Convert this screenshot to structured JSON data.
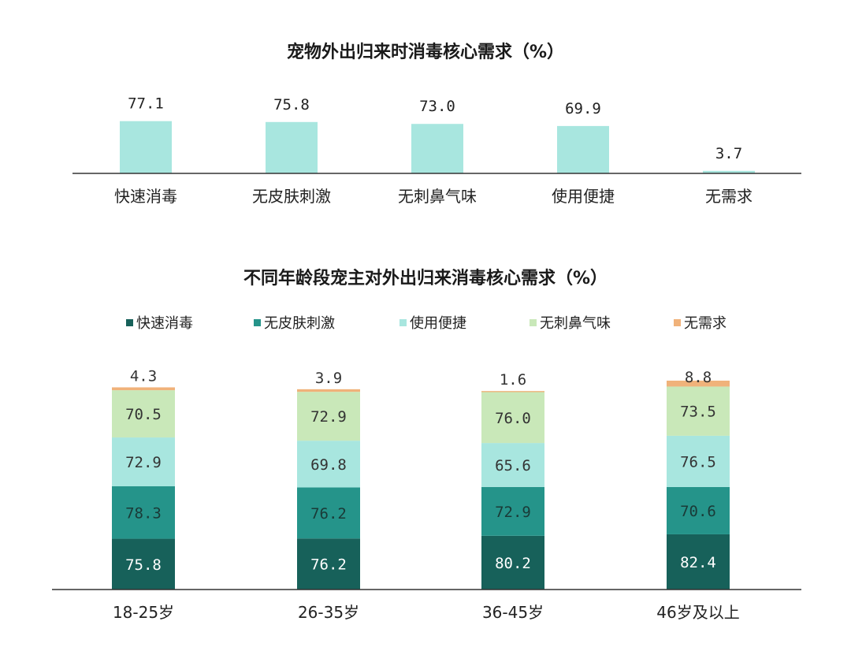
{
  "chart_data": [
    {
      "type": "bar",
      "title": "宠物外出归来时消毒核心需求（%）",
      "categories": [
        "快速消毒",
        "无皮肤刺激",
        "无刺鼻气味",
        "使用便捷",
        "无需求"
      ],
      "values": [
        77.1,
        75.8,
        73.0,
        69.9,
        3.7
      ],
      "value_labels": [
        "77.1",
        "75.8",
        "73.0",
        "69.9",
        "3.7"
      ],
      "ylim": [
        0,
        100
      ],
      "color": "#a8e6df",
      "grid": false
    },
    {
      "type": "bar",
      "stacked": true,
      "title": "不同年龄段宠主对外出归来消毒核心需求（%）",
      "categories": [
        "18-25岁",
        "26-35岁",
        "36-45岁",
        "46岁及以上"
      ],
      "series": [
        {
          "name": "快速消毒",
          "color": "#17615a",
          "values": [
            75.8,
            76.2,
            80.2,
            82.4
          ],
          "labels": [
            "75.8",
            "76.2",
            "80.2",
            "82.4"
          ]
        },
        {
          "name": "无皮肤刺激",
          "color": "#25948a",
          "values": [
            78.3,
            76.2,
            72.9,
            70.6
          ],
          "labels": [
            "78.3",
            "76.2",
            "72.9",
            "70.6"
          ]
        },
        {
          "name": "使用便捷",
          "color": "#a8e6df",
          "values": [
            72.9,
            69.8,
            65.6,
            76.5
          ],
          "labels": [
            "72.9",
            "69.8",
            "65.6",
            "76.5"
          ]
        },
        {
          "name": "无刺鼻气味",
          "color": "#c9e8b9",
          "values": [
            70.5,
            72.9,
            76.0,
            73.5
          ],
          "labels": [
            "70.5",
            "72.9",
            "76.0",
            "73.5"
          ]
        },
        {
          "name": "无需求",
          "color": "#f0b27a",
          "values": [
            4.3,
            3.9,
            1.6,
            8.8
          ],
          "labels": [
            "4.3",
            "3.9",
            "1.6",
            "8.8"
          ]
        }
      ],
      "legend_position": "top",
      "grid": false
    }
  ]
}
